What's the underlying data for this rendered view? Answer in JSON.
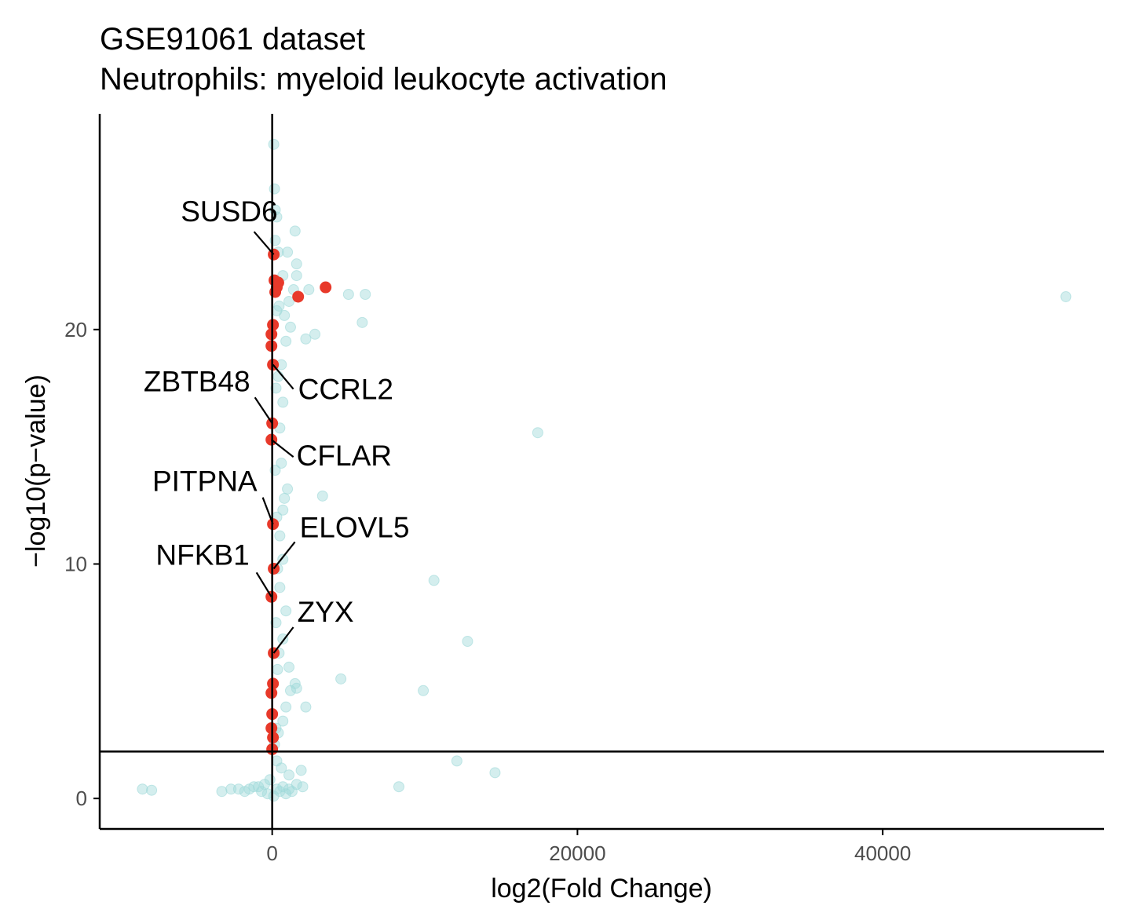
{
  "chart_data": {
    "type": "scatter",
    "title": "GSE91061 dataset",
    "subtitle": "Neutrophils: myeloid leukocyte activation",
    "xlabel": "log2(Fold Change)",
    "ylabel": "−log10(p−value)",
    "xlim": [
      -11300,
      54500
    ],
    "ylim": [
      -1.3,
      29.2
    ],
    "x_ticks": [
      0,
      20000,
      40000
    ],
    "x_tick_labels": [
      "0",
      "20000",
      "40000"
    ],
    "y_ticks": [
      0,
      10,
      20
    ],
    "y_tick_labels": [
      "0",
      "10",
      "20"
    ],
    "grid": false,
    "legend": "none",
    "reference_lines": {
      "vertical_x": 0,
      "horizontal_y": 2
    },
    "colors": {
      "background_points": "#9fd9d9",
      "highlight_points": "#e8392a",
      "axis": "#000000"
    },
    "series": [
      {
        "role": "background",
        "points": [
          [
            -8500,
            0.4
          ],
          [
            -7900,
            0.35
          ],
          [
            -3300,
            0.3
          ],
          [
            -2700,
            0.4
          ],
          [
            -2200,
            0.4
          ],
          [
            -1800,
            0.3
          ],
          [
            -1500,
            0.4
          ],
          [
            -1200,
            0.5
          ],
          [
            -900,
            0.5
          ],
          [
            -700,
            0.3
          ],
          [
            -500,
            0.6
          ],
          [
            -300,
            0.2
          ],
          [
            -150,
            0.8
          ],
          [
            100,
            0.1
          ],
          [
            300,
            0.4
          ],
          [
            500,
            0.3
          ],
          [
            700,
            0.5
          ],
          [
            900,
            0.2
          ],
          [
            1100,
            0.4
          ],
          [
            1300,
            0.3
          ],
          [
            1600,
            0.6
          ],
          [
            2000,
            0.5
          ],
          [
            1900,
            1.2
          ],
          [
            1100,
            1.0
          ],
          [
            600,
            1.3
          ],
          [
            300,
            1.6
          ],
          [
            150,
            2.3
          ],
          [
            400,
            2.8
          ],
          [
            700,
            3.3
          ],
          [
            900,
            3.9
          ],
          [
            1200,
            4.6
          ],
          [
            1500,
            4.9
          ],
          [
            2200,
            3.9
          ],
          [
            1600,
            4.7
          ],
          [
            1100,
            5.6
          ],
          [
            700,
            6.8
          ],
          [
            900,
            8.0
          ],
          [
            500,
            9.0
          ],
          [
            700,
            10.2
          ],
          [
            500,
            11.2
          ],
          [
            700,
            12.3
          ],
          [
            1000,
            13.2
          ],
          [
            800,
            12.8
          ],
          [
            3300,
            12.9
          ],
          [
            600,
            14.3
          ],
          [
            500,
            15.8
          ],
          [
            700,
            16.9
          ],
          [
            600,
            18.5
          ],
          [
            900,
            19.5
          ],
          [
            2200,
            19.6
          ],
          [
            2800,
            19.8
          ],
          [
            1200,
            20.1
          ],
          [
            800,
            20.6
          ],
          [
            1100,
            21.2
          ],
          [
            1400,
            21.7
          ],
          [
            2400,
            21.7
          ],
          [
            700,
            22.3
          ],
          [
            1600,
            22.3
          ],
          [
            400,
            23.3
          ],
          [
            1000,
            23.3
          ],
          [
            1600,
            22.8
          ],
          [
            1500,
            24.2
          ],
          [
            200,
            25.1
          ],
          [
            100,
            27.9
          ],
          [
            300,
            24.8
          ],
          [
            5000,
            21.5
          ],
          [
            6100,
            21.5
          ],
          [
            5900,
            20.3
          ],
          [
            17400,
            15.6
          ],
          [
            52000,
            21.4
          ],
          [
            10600,
            9.3
          ],
          [
            12800,
            6.7
          ],
          [
            4500,
            5.1
          ],
          [
            9900,
            4.6
          ],
          [
            8300,
            0.5
          ],
          [
            12100,
            1.6
          ],
          [
            14600,
            1.1
          ],
          [
            250,
            3.0
          ],
          [
            350,
            5.5
          ],
          [
            250,
            7.5
          ],
          [
            300,
            12.0
          ],
          [
            200,
            14.0
          ],
          [
            250,
            17.5
          ],
          [
            300,
            20.8
          ],
          [
            200,
            23.8
          ],
          [
            150,
            26.0
          ],
          [
            450,
            21.0
          ],
          [
            400,
            18.0
          ],
          [
            350,
            9.8
          ],
          [
            450,
            6.2
          ]
        ]
      },
      {
        "role": "highlighted",
        "points": [
          [
            100,
            23.2
          ],
          [
            150,
            22.1
          ],
          [
            400,
            22.0
          ],
          [
            300,
            21.8
          ],
          [
            200,
            21.6
          ],
          [
            1700,
            21.4
          ],
          [
            3500,
            21.8
          ],
          [
            50,
            20.2
          ],
          [
            -50,
            19.8
          ],
          [
            -50,
            19.3
          ],
          [
            50,
            18.5
          ],
          [
            0,
            16.0
          ],
          [
            -50,
            15.3
          ],
          [
            50,
            11.7
          ],
          [
            100,
            9.8
          ],
          [
            -50,
            8.6
          ],
          [
            100,
            6.2
          ],
          [
            50,
            4.9
          ],
          [
            -50,
            4.5
          ],
          [
            0,
            3.6
          ],
          [
            -50,
            3.0
          ],
          [
            50,
            2.6
          ],
          [
            0,
            2.1
          ]
        ]
      }
    ],
    "annotations": [
      {
        "label": "SUSD6",
        "x": 100,
        "y": 23.2
      },
      {
        "label": "CCRL2",
        "x": 50,
        "y": 18.5
      },
      {
        "label": "ZBTB48",
        "x": 0,
        "y": 16.0
      },
      {
        "label": "CFLAR",
        "x": -50,
        "y": 15.3
      },
      {
        "label": "PITPNA",
        "x": 50,
        "y": 11.7
      },
      {
        "label": "ELOVL5",
        "x": 100,
        "y": 9.8
      },
      {
        "label": "NFKB1",
        "x": -50,
        "y": 8.6
      },
      {
        "label": "ZYX",
        "x": 100,
        "y": 6.2
      }
    ]
  }
}
